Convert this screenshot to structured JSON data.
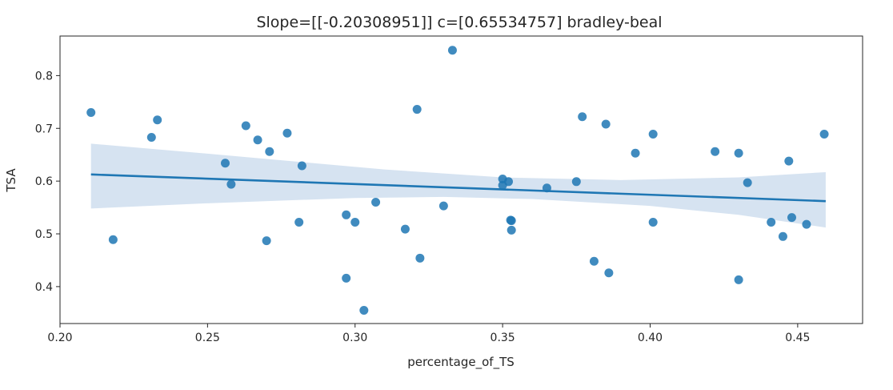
{
  "chart_data": {
    "type": "scatter",
    "title": "Slope=[[-0.20308951]] c=[0.65534757]  bradley-beal",
    "xlabel": "percentage_of_TS",
    "ylabel": "TSA",
    "xlim": [
      0.2,
      0.472
    ],
    "ylim": [
      0.33,
      0.875
    ],
    "xticks": [
      "0.20",
      "0.25",
      "0.30",
      "0.35",
      "0.40",
      "0.45"
    ],
    "yticks": [
      "0.4",
      "0.5",
      "0.6",
      "0.7",
      "0.8"
    ],
    "grid": false,
    "point_color": "#1f77b4",
    "line_color": "#1f77b4",
    "band_color": "#c8d9ec",
    "regression": {
      "slope": -0.20308951,
      "intercept": 0.65534757,
      "x_range": [
        0.2105,
        0.4595
      ],
      "ci_lower": [
        [
          0.2105,
          0.548
        ],
        [
          0.25,
          0.558
        ],
        [
          0.3,
          0.568
        ],
        [
          0.33,
          0.57
        ],
        [
          0.36,
          0.566
        ],
        [
          0.4,
          0.553
        ],
        [
          0.43,
          0.536
        ],
        [
          0.4595,
          0.512
        ]
      ],
      "ci_upper": [
        [
          0.2105,
          0.671
        ],
        [
          0.25,
          0.652
        ],
        [
          0.28,
          0.637
        ],
        [
          0.31,
          0.622
        ],
        [
          0.35,
          0.607
        ],
        [
          0.39,
          0.602
        ],
        [
          0.43,
          0.607
        ],
        [
          0.4595,
          0.617
        ]
      ]
    },
    "points": [
      {
        "x": 0.2105,
        "y": 0.73
      },
      {
        "x": 0.218,
        "y": 0.489
      },
      {
        "x": 0.231,
        "y": 0.683
      },
      {
        "x": 0.233,
        "y": 0.716
      },
      {
        "x": 0.256,
        "y": 0.634
      },
      {
        "x": 0.258,
        "y": 0.594
      },
      {
        "x": 0.263,
        "y": 0.705
      },
      {
        "x": 0.267,
        "y": 0.678
      },
      {
        "x": 0.27,
        "y": 0.487
      },
      {
        "x": 0.271,
        "y": 0.656
      },
      {
        "x": 0.277,
        "y": 0.691
      },
      {
        "x": 0.281,
        "y": 0.522
      },
      {
        "x": 0.282,
        "y": 0.629
      },
      {
        "x": 0.297,
        "y": 0.536
      },
      {
        "x": 0.297,
        "y": 0.416
      },
      {
        "x": 0.3,
        "y": 0.522
      },
      {
        "x": 0.303,
        "y": 0.355
      },
      {
        "x": 0.307,
        "y": 0.56
      },
      {
        "x": 0.317,
        "y": 0.509
      },
      {
        "x": 0.321,
        "y": 0.736
      },
      {
        "x": 0.322,
        "y": 0.454
      },
      {
        "x": 0.33,
        "y": 0.553
      },
      {
        "x": 0.333,
        "y": 0.848
      },
      {
        "x": 0.35,
        "y": 0.604
      },
      {
        "x": 0.35,
        "y": 0.592
      },
      {
        "x": 0.352,
        "y": 0.599
      },
      {
        "x": 0.353,
        "y": 0.525
      },
      {
        "x": 0.353,
        "y": 0.507
      },
      {
        "x": 0.3527,
        "y": 0.526
      },
      {
        "x": 0.365,
        "y": 0.587
      },
      {
        "x": 0.375,
        "y": 0.599
      },
      {
        "x": 0.377,
        "y": 0.722
      },
      {
        "x": 0.381,
        "y": 0.448
      },
      {
        "x": 0.385,
        "y": 0.708
      },
      {
        "x": 0.386,
        "y": 0.426
      },
      {
        "x": 0.395,
        "y": 0.653
      },
      {
        "x": 0.401,
        "y": 0.689
      },
      {
        "x": 0.401,
        "y": 0.522
      },
      {
        "x": 0.422,
        "y": 0.656
      },
      {
        "x": 0.43,
        "y": 0.653
      },
      {
        "x": 0.43,
        "y": 0.413
      },
      {
        "x": 0.433,
        "y": 0.597
      },
      {
        "x": 0.441,
        "y": 0.522
      },
      {
        "x": 0.445,
        "y": 0.495
      },
      {
        "x": 0.447,
        "y": 0.638
      },
      {
        "x": 0.448,
        "y": 0.531
      },
      {
        "x": 0.453,
        "y": 0.518
      },
      {
        "x": 0.459,
        "y": 0.689
      }
    ]
  }
}
